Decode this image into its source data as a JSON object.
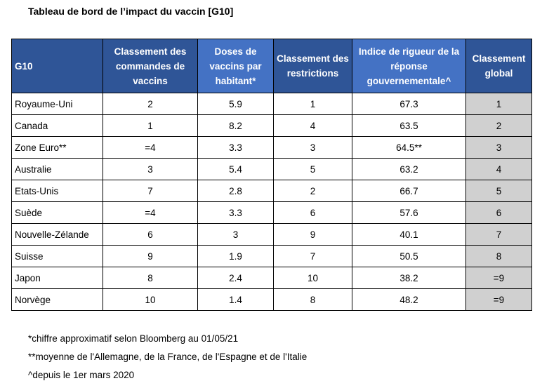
{
  "title": "Tableau de bord de l’impact du vaccin [G10]",
  "table": {
    "headers": [
      "G10",
      "Classement des commandes de vaccins",
      "Doses de vaccins par habitant*",
      "Classement des restrictions",
      "Indice de rigueur de la réponse gouvernementale^",
      "Classement global"
    ],
    "rows": [
      [
        "Royaume-Uni",
        "2",
        "5.9",
        "1",
        "67.3",
        "1"
      ],
      [
        "Canada",
        "1",
        "8.2",
        "4",
        "63.5",
        "2"
      ],
      [
        "Zone Euro**",
        "=4",
        "3.3",
        "3",
        "64.5**",
        "3"
      ],
      [
        "Australie",
        "3",
        "5.4",
        "5",
        "63.2",
        "4"
      ],
      [
        "Etats-Unis",
        "7",
        "2.8",
        "2",
        "66.7",
        "5"
      ],
      [
        "Suède",
        "=4",
        "3.3",
        "6",
        "57.6",
        "6"
      ],
      [
        "Nouvelle-Zélande",
        "6",
        "3",
        "9",
        "40.1",
        "7"
      ],
      [
        "Suisse",
        "9",
        "1.9",
        "7",
        "50.5",
        "8"
      ],
      [
        "Japon",
        "8",
        "2.4",
        "10",
        "38.2",
        "=9"
      ],
      [
        "Norvège",
        "10",
        "1.4",
        "8",
        "48.2",
        "=9"
      ]
    ]
  },
  "notes": [
    "*chiffre approximatif selon Bloomberg au 01/05/21",
    "**moyenne de l'Allemagne, de la France, de l'Espagne et de l'Italie",
    "^depuis le 1er mars 2020"
  ],
  "colors": {
    "header_dark": "#2f5597",
    "header_highlight": "#4472c4",
    "overall_column": "#d0d0d0"
  }
}
